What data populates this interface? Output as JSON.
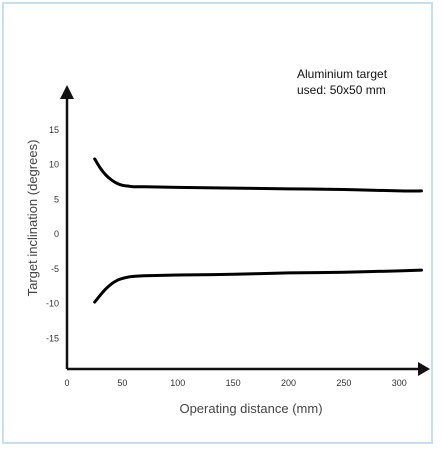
{
  "chart_data": {
    "type": "line",
    "title": "",
    "xlabel": "Operating distance (mm)",
    "ylabel": "Target inclination (degrees)",
    "annotation": [
      "Aluminium target",
      "used: 50x50 mm"
    ],
    "xlim": [
      0,
      325
    ],
    "ylim": [
      -20,
      20
    ],
    "x_ticks": [
      "0",
      "50",
      "100",
      "150",
      "200",
      "250",
      "300"
    ],
    "y_ticks": [
      "15",
      "10",
      "5",
      "0",
      "-5",
      "-10",
      "-15"
    ],
    "grid": false,
    "series": [
      {
        "x": [
          25,
          30,
          35,
          40,
          45,
          50,
          55,
          60,
          70,
          100,
          150,
          200,
          250,
          300,
          320
        ],
        "y": [
          10.8,
          9.5,
          8.5,
          7.8,
          7.3,
          7.0,
          6.9,
          6.8,
          6.8,
          6.7,
          6.6,
          6.5,
          6.4,
          6.2,
          6.2
        ]
      },
      {
        "x": [
          25,
          30,
          35,
          40,
          45,
          50,
          55,
          60,
          70,
          100,
          150,
          200,
          250,
          300,
          320
        ],
        "y": [
          -9.8,
          -8.8,
          -7.9,
          -7.2,
          -6.7,
          -6.4,
          -6.2,
          -6.1,
          -6.0,
          -5.9,
          -5.8,
          -5.6,
          -5.5,
          -5.3,
          -5.2
        ]
      }
    ],
    "colors": {
      "axis": "#111111",
      "line": "#000000",
      "tick_text": "#333333",
      "label_text": "#444444",
      "frame": "#c6def0"
    }
  }
}
